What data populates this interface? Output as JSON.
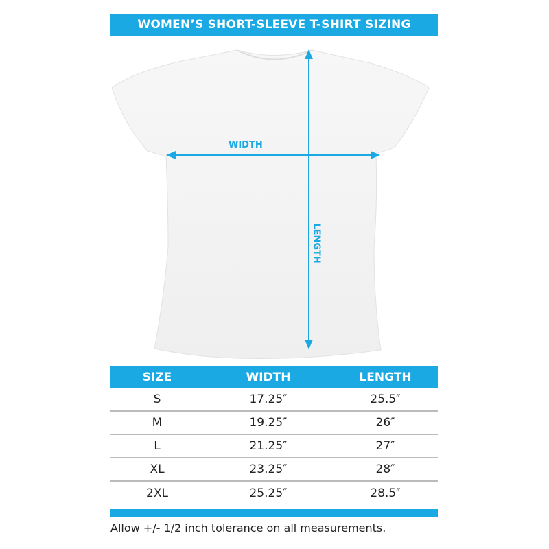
{
  "title": "WOMEN’S SHORT-SLEEVE T-SHIRT SIZING",
  "diagram": {
    "width_label": "WIDTH",
    "length_label": "LENGTH"
  },
  "accent_color": "#1aa9e2",
  "table": {
    "headers": [
      "SIZE",
      "WIDTH",
      "LENGTH"
    ],
    "rows": [
      [
        "S",
        "17.25″",
        "25.5″"
      ],
      [
        "M",
        "19.25″",
        "26″"
      ],
      [
        "L",
        "21.25″",
        "27″"
      ],
      [
        "XL",
        "23.25″",
        "28″"
      ],
      [
        "2XL",
        "25.25″",
        "28.5″"
      ]
    ]
  },
  "note": "Allow +/- 1/2 inch tolerance on all measurements."
}
